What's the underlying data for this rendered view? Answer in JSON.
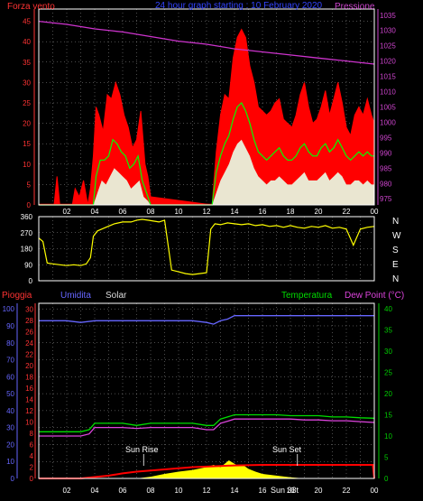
{
  "colors": {
    "wind_gust": "#ff0000",
    "wind_avg": "#00ff00",
    "wind_min": "#e8ffe8",
    "pressure": "#cc33cc",
    "direction": "#ffff00",
    "humidity": "#6666ff",
    "solar": "#ffff00",
    "rain": "#ff0000",
    "temperature": "#00dd00",
    "dewpoint": "#dd44dd",
    "grid": "#ffffff",
    "axis_red": "#ff3333",
    "axis_blue": "#6666ff",
    "axis_green": "#00cc00",
    "axis_purple": "#cc44cc",
    "frame": "#ffffff"
  },
  "chart_data": [
    {
      "id": "wind",
      "type": "area",
      "title": "24 hour graph starting : 10 February 2020",
      "left_label": "Forza vento",
      "right_label": "Pressione",
      "x_ticks": [
        "02",
        "04",
        "06",
        "08",
        "10",
        "12",
        "14",
        "16",
        "18",
        "20",
        "22",
        "00"
      ],
      "x_range": [
        0,
        24
      ],
      "y_left": {
        "ticks": [
          "0",
          "5",
          "10",
          "15",
          "20",
          "25",
          "30",
          "35",
          "40",
          "45"
        ],
        "range": [
          0,
          48
        ]
      },
      "y_right": {
        "ticks": [
          "975",
          "980",
          "985",
          "990",
          "995",
          "1000",
          "1005",
          "1010",
          "1015",
          "1020",
          "1025",
          "1030",
          "1035"
        ],
        "range": [
          973,
          1037
        ]
      },
      "series": [
        {
          "name": "gust",
          "x": [
            0,
            1.1,
            1.3,
            1.5,
            2.4,
            2.6,
            2.9,
            3.2,
            3.5,
            3.7,
            3.9,
            4.1,
            4.3,
            4.6,
            4.9,
            5.2,
            5.5,
            5.8,
            6.1,
            6.4,
            6.7,
            7.0,
            7.3,
            7.6,
            7.8,
            8.0,
            12.4,
            12.7,
            13.0,
            13.3,
            13.6,
            13.9,
            14.2,
            14.5,
            14.8,
            15.1,
            15.4,
            15.7,
            16.0,
            16.3,
            16.6,
            16.9,
            17.2,
            17.5,
            17.8,
            18.1,
            18.4,
            18.7,
            19.0,
            19.3,
            19.6,
            19.9,
            20.2,
            20.5,
            20.8,
            21.1,
            21.4,
            21.7,
            22.0,
            22.3,
            22.6,
            22.9,
            23.2,
            23.5,
            23.8,
            24.0
          ],
          "y": [
            0,
            0,
            7,
            0,
            0,
            4,
            2,
            6,
            0,
            4,
            12,
            24,
            22,
            18,
            27,
            26,
            30,
            27,
            22,
            19,
            14,
            16,
            23,
            10,
            7,
            2,
            0,
            13,
            22,
            27,
            26,
            36,
            41,
            43,
            41,
            34,
            30,
            24,
            23,
            22,
            23,
            25,
            26,
            21,
            20,
            19,
            22,
            27,
            30,
            24,
            20,
            21,
            24,
            28,
            22,
            26,
            30,
            25,
            19,
            17,
            22,
            24,
            22,
            26,
            22,
            20
          ]
        },
        {
          "name": "avg",
          "x": [
            0,
            3.9,
            4.1,
            4.4,
            4.7,
            5.0,
            5.3,
            5.6,
            5.9,
            6.2,
            6.5,
            6.8,
            7.1,
            7.4,
            7.7,
            8.0,
            12.4,
            12.7,
            13.0,
            13.3,
            13.6,
            13.9,
            14.2,
            14.5,
            14.8,
            15.1,
            15.4,
            15.7,
            16.0,
            16.3,
            16.6,
            16.9,
            17.2,
            17.5,
            17.8,
            18.1,
            18.4,
            18.7,
            19.0,
            19.3,
            19.6,
            19.9,
            20.2,
            20.5,
            20.8,
            21.1,
            21.4,
            21.7,
            22.0,
            22.3,
            22.6,
            22.9,
            23.2,
            23.5,
            23.8,
            24.0
          ],
          "y": [
            0,
            0,
            7,
            11,
            11,
            12,
            16,
            15,
            13,
            12,
            9,
            10,
            12,
            6,
            3,
            0,
            0,
            8,
            12,
            15,
            17,
            21,
            24,
            25,
            23,
            20,
            16,
            13,
            12,
            11,
            12,
            13,
            14,
            12,
            11,
            11,
            12,
            14,
            15,
            13,
            12,
            12,
            14,
            15,
            13,
            14,
            16,
            14,
            12,
            11,
            12,
            13,
            12,
            13,
            12,
            12
          ]
        },
        {
          "name": "min",
          "x": [
            0,
            3.9,
            4.2,
            4.5,
            4.8,
            5.1,
            5.4,
            5.7,
            6.0,
            6.3,
            6.6,
            6.9,
            7.2,
            7.5,
            7.8,
            8.0,
            12.4,
            12.7,
            13.0,
            13.3,
            13.6,
            13.9,
            14.2,
            14.5,
            14.8,
            15.1,
            15.4,
            15.7,
            16.0,
            16.3,
            16.6,
            16.9,
            17.2,
            17.5,
            17.8,
            18.1,
            18.4,
            18.7,
            19.0,
            19.3,
            19.6,
            19.9,
            20.2,
            20.5,
            20.8,
            21.1,
            21.4,
            21.7,
            22.0,
            22.3,
            22.6,
            22.9,
            23.2,
            23.5,
            23.8,
            24.0
          ],
          "y": [
            0,
            0,
            3,
            6,
            5,
            7,
            9,
            8,
            7,
            6,
            4,
            5,
            6,
            2,
            1,
            0,
            0,
            3,
            6,
            8,
            10,
            13,
            15,
            16,
            14,
            12,
            9,
            7,
            6,
            5,
            6,
            6,
            7,
            6,
            5,
            5,
            6,
            7,
            8,
            6,
            6,
            6,
            7,
            8,
            6,
            7,
            8,
            7,
            5,
            5,
            6,
            6,
            5,
            6,
            5,
            5
          ]
        },
        {
          "name": "pressure",
          "x": [
            0,
            2,
            4,
            6,
            8,
            10,
            12,
            14,
            16,
            18,
            20,
            22,
            24
          ],
          "y": [
            1033,
            1032,
            1030.5,
            1029.5,
            1028,
            1026.5,
            1025.5,
            1024,
            1023,
            1022,
            1021,
            1020,
            1019
          ]
        }
      ]
    },
    {
      "id": "direction",
      "type": "line",
      "right_labels": [
        "N",
        "W",
        "S",
        "E",
        "N"
      ],
      "x_range": [
        0,
        24
      ],
      "y_range": [
        0,
        360
      ],
      "y_ticks": [
        "0",
        "90",
        "180",
        "270",
        "360"
      ],
      "series": [
        {
          "name": "direction",
          "x": [
            0,
            0.3,
            0.6,
            1.0,
            1.5,
            2.0,
            2.5,
            3.0,
            3.4,
            3.7,
            3.9,
            4.2,
            4.8,
            5.4,
            6.0,
            6.6,
            7.0,
            7.4,
            7.8,
            8.2,
            8.6,
            9.0,
            9.5,
            10.0,
            10.5,
            11.0,
            11.5,
            12.0,
            12.3,
            12.6,
            13.0,
            13.5,
            14.0,
            14.5,
            15.0,
            15.5,
            16.0,
            16.5,
            17.0,
            17.5,
            18.0,
            18.5,
            19.0,
            19.5,
            20.0,
            20.5,
            21.0,
            21.5,
            22.0,
            22.5,
            23.0,
            23.5,
            24.0
          ],
          "y": [
            240,
            220,
            100,
            95,
            90,
            85,
            90,
            85,
            95,
            130,
            250,
            280,
            300,
            320,
            330,
            330,
            340,
            345,
            340,
            335,
            330,
            340,
            60,
            50,
            40,
            35,
            40,
            45,
            290,
            320,
            315,
            325,
            320,
            315,
            320,
            310,
            315,
            305,
            310,
            300,
            310,
            300,
            295,
            305,
            300,
            310,
            295,
            300,
            290,
            200,
            290,
            300,
            305
          ]
        }
      ]
    },
    {
      "id": "humidity_temp",
      "type": "line",
      "labels": [
        "Pioggia",
        "Umidita",
        "Solar",
        "Temperatura",
        "Dew Point (°C)"
      ],
      "annotations": [
        "Sun Rise",
        "Sun Set",
        "Sun 33t"
      ],
      "x_ticks": [
        "02",
        "04",
        "06",
        "08",
        "10",
        "12",
        "14",
        "16",
        "18",
        "20",
        "22",
        "00"
      ],
      "x_range": [
        0,
        24
      ],
      "y_rain": {
        "ticks": [
          "0",
          "2",
          "4",
          "6",
          "8",
          "10",
          "12",
          "14",
          "16",
          "18",
          "20",
          "22",
          "24",
          "26",
          "28",
          "30"
        ],
        "range": [
          0,
          31
        ]
      },
      "y_humidity": {
        "ticks": [
          "0",
          "10",
          "20",
          "30",
          "40",
          "50",
          "60",
          "70",
          "80",
          "90",
          "100"
        ],
        "range": [
          0,
          103.3
        ]
      },
      "y_temp": {
        "ticks": [
          "0",
          "5",
          "10",
          "15",
          "20",
          "25",
          "30",
          "35",
          "40"
        ],
        "range": [
          0,
          41.3
        ]
      },
      "series": [
        {
          "name": "humidity",
          "x": [
            0,
            1,
            2,
            3,
            4,
            5,
            6,
            7,
            8,
            9,
            10,
            11,
            12,
            12.5,
            13,
            13.5,
            14,
            15,
            16,
            17,
            18,
            19,
            20,
            21,
            22,
            23,
            24
          ],
          "y": [
            93,
            93,
            93,
            92,
            93,
            93,
            93,
            93,
            93,
            93,
            93,
            93,
            92,
            91,
            93,
            94,
            96,
            96,
            96,
            96,
            96,
            96,
            96,
            96,
            96,
            96,
            96
          ]
        },
        {
          "name": "temperature",
          "x": [
            0,
            1,
            2,
            3,
            3.6,
            4.0,
            5,
            6,
            7,
            8,
            9,
            10,
            11,
            12,
            12.5,
            13,
            13.5,
            14,
            15,
            16,
            17,
            18,
            19,
            20,
            21,
            22,
            23,
            24
          ],
          "y": [
            11,
            11,
            11,
            11,
            11.5,
            13,
            13,
            13,
            12.5,
            13,
            13,
            13,
            13,
            12.5,
            12.5,
            14,
            14.5,
            15,
            15,
            15,
            15,
            14.8,
            14.8,
            14.8,
            14.5,
            14.5,
            14.3,
            14.2
          ]
        },
        {
          "name": "dewpoint",
          "x": [
            0,
            1,
            2,
            3,
            3.6,
            4.0,
            5,
            6,
            7,
            8,
            9,
            10,
            11,
            12,
            12.5,
            13,
            13.5,
            14,
            15,
            16,
            17,
            18,
            19,
            20,
            21,
            22,
            23,
            24
          ],
          "y": [
            10,
            10,
            10,
            10,
            10.5,
            12,
            12,
            12,
            11.8,
            12,
            12,
            12,
            12,
            11.5,
            11.5,
            13,
            13.5,
            14,
            14,
            14,
            14,
            14,
            13.8,
            13.8,
            13.6,
            13.6,
            13.4,
            13.2
          ]
        },
        {
          "name": "rain",
          "x": [
            0,
            3,
            5,
            6,
            7,
            8,
            9,
            10,
            11,
            12,
            13,
            14,
            16,
            18,
            20,
            22,
            23.9,
            24
          ],
          "y": [
            0,
            0,
            0.5,
            0.9,
            1.2,
            1.4,
            1.6,
            1.8,
            2.0,
            2.1,
            2.2,
            2.3,
            2.4,
            2.4,
            2.4,
            2.4,
            2.4,
            0
          ]
        },
        {
          "name": "solar",
          "x": [
            0,
            7,
            8,
            9,
            10,
            11,
            12,
            12.5,
            13,
            13.3,
            13.6,
            14.0,
            14.3,
            14.6,
            15.0,
            15.5,
            16,
            17,
            18,
            19,
            24
          ],
          "y": [
            0,
            0,
            0.3,
            0.8,
            1.2,
            1.5,
            2.0,
            2.4,
            2.0,
            2.6,
            3.2,
            2.6,
            2.2,
            2.4,
            1.7,
            1.2,
            0.8,
            0.5,
            0.2,
            0,
            0
          ]
        }
      ]
    }
  ]
}
